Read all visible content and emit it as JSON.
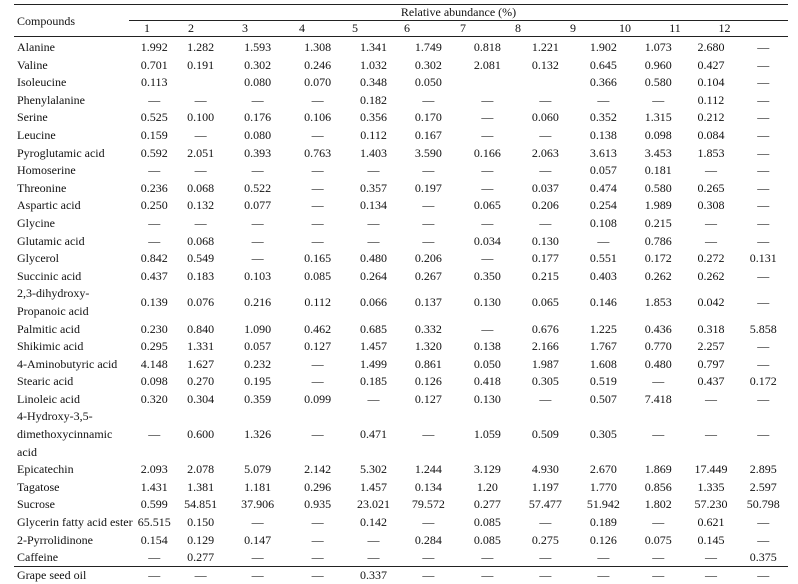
{
  "header": {
    "compounds_label": "Compounds",
    "group_label": "Relative abundance (%)",
    "columns": [
      "1",
      "2",
      "3",
      "4",
      "5",
      "6",
      "7",
      "8",
      "9",
      "10",
      "11",
      "12"
    ]
  },
  "rows": [
    {
      "name": "Alanine",
      "values": [
        "1.992",
        "1.282",
        "1.593",
        "1.308",
        "1.341",
        "1.749",
        "0.818",
        "1.221",
        "1.902",
        "1.073",
        "2.680",
        "—"
      ]
    },
    {
      "name": "Valine",
      "values": [
        "0.701",
        "0.191",
        "0.302",
        "0.246",
        "1.032",
        "0.302",
        "2.081",
        "0.132",
        "0.645",
        "0.960",
        "0.427",
        "—"
      ]
    },
    {
      "name": "Isoleucine",
      "values": [
        "0.113",
        "",
        "0.080",
        "0.070",
        "0.348",
        "0.050",
        "",
        "",
        "0.366",
        "0.580",
        "0.104",
        "—"
      ]
    },
    {
      "name": "Phenylalanine",
      "values": [
        "—",
        "—",
        "—",
        "—",
        "0.182",
        "—",
        "—",
        "—",
        "—",
        "—",
        "0.112",
        "—"
      ]
    },
    {
      "name": "Serine",
      "values": [
        "0.525",
        "0.100",
        "0.176",
        "0.106",
        "0.356",
        "0.170",
        "—",
        "0.060",
        "0.352",
        "1.315",
        "0.212",
        "—"
      ]
    },
    {
      "name": "Leucine",
      "values": [
        "0.159",
        "—",
        "0.080",
        "—",
        "0.112",
        "0.167",
        "—",
        "—",
        "0.138",
        "0.098",
        "0.084",
        "—"
      ]
    },
    {
      "name": "Pyroglutamic acid",
      "values": [
        "0.592",
        "2.051",
        "0.393",
        "0.763",
        "1.403",
        "3.590",
        "0.166",
        "2.063",
        "3.613",
        "3.453",
        "1.853",
        "—"
      ]
    },
    {
      "name": "Homoserine",
      "values": [
        "—",
        "—",
        "—",
        "—",
        "—",
        "—",
        "—",
        "—",
        "0.057",
        "0.181",
        "—",
        "—"
      ]
    },
    {
      "name": "Threonine",
      "values": [
        "0.236",
        "0.068",
        "0.522",
        "—",
        "0.357",
        "0.197",
        "—",
        "0.037",
        "0.474",
        "0.580",
        "0.265",
        "—"
      ]
    },
    {
      "name": "Aspartic acid",
      "values": [
        "0.250",
        "0.132",
        "0.077",
        "—",
        "0.134",
        "—",
        "0.065",
        "0.206",
        "0.254",
        "1.989",
        "0.308",
        "—"
      ]
    },
    {
      "name": "Glycine",
      "values": [
        "—",
        "—",
        "—",
        "—",
        "—",
        "—",
        "—",
        "—",
        "0.108",
        "0.215",
        "—",
        "—"
      ]
    },
    {
      "name": "Glutamic acid",
      "values": [
        "—",
        "0.068",
        "—",
        "—",
        "—",
        "—",
        "0.034",
        "0.130",
        "—",
        "0.786",
        "—",
        "—"
      ]
    },
    {
      "name": "Glycerol",
      "values": [
        "0.842",
        "0.549",
        "—",
        "0.165",
        "0.480",
        "0.206",
        "—",
        "0.177",
        "0.551",
        "0.172",
        "0.272",
        "0.131"
      ]
    },
    {
      "name": "Succinic acid",
      "values": [
        "0.437",
        "0.183",
        "0.103",
        "0.085",
        "0.264",
        "0.267",
        "0.350",
        "0.215",
        "0.403",
        "0.262",
        "0.262",
        "—"
      ]
    },
    {
      "name": "2,3-dihydroxy-Propanoic acid",
      "values": [
        "0.139",
        "0.076",
        "0.216",
        "0.112",
        "0.066",
        "0.137",
        "0.130",
        "0.065",
        "0.146",
        "1.853",
        "0.042",
        "—"
      ]
    },
    {
      "name": "Palmitic acid",
      "values": [
        "0.230",
        "0.840",
        "1.090",
        "0.462",
        "0.685",
        "0.332",
        "—",
        "0.676",
        "1.225",
        "0.436",
        "0.318",
        "5.858"
      ]
    },
    {
      "name": "Shikimic acid",
      "values": [
        "0.295",
        "1.331",
        "0.057",
        "0.127",
        "1.457",
        "1.320",
        "0.138",
        "2.166",
        "1.767",
        "0.770",
        "2.257",
        "—"
      ]
    },
    {
      "name": "4-Aminobutyric acid",
      "values": [
        "4.148",
        "1.627",
        "0.232",
        "—",
        "1.499",
        "0.861",
        "0.050",
        "1.987",
        "1.608",
        "0.480",
        "0.797",
        "—"
      ]
    },
    {
      "name": "Stearic acid",
      "values": [
        "0.098",
        "0.270",
        "0.195",
        "—",
        "0.185",
        "0.126",
        "0.418",
        "0.305",
        "0.519",
        "—",
        "0.437",
        "0.172"
      ]
    },
    {
      "name": "Linoleic acid",
      "values": [
        "0.320",
        "0.304",
        "0.359",
        "0.099",
        "—",
        "0.127",
        "0.130",
        "—",
        "0.507",
        "7.418",
        "—",
        "—"
      ]
    },
    {
      "name": "4-Hydroxy-3,5-dimethoxycinnamic acid",
      "values": [
        "—",
        "0.600",
        "1.326",
        "—",
        "0.471",
        "—",
        "1.059",
        "0.509",
        "0.305",
        "—",
        "—",
        "—"
      ]
    },
    {
      "name": "Epicatechin",
      "values": [
        "2.093",
        "2.078",
        "5.079",
        "2.142",
        "5.302",
        "1.244",
        "3.129",
        "4.930",
        "2.670",
        "1.869",
        "17.449",
        "2.895"
      ]
    },
    {
      "name": "Tagatose",
      "values": [
        "1.431",
        "1.381",
        "1.181",
        "0.296",
        "1.457",
        "0.134",
        "1.20",
        "1.197",
        "1.770",
        "0.856",
        "1.335",
        "2.597"
      ]
    },
    {
      "name": "Sucrose",
      "values": [
        "0.599",
        "54.851",
        "37.906",
        "0.935",
        "23.021",
        "79.572",
        "0.277",
        "57.477",
        "51.942",
        "1.802",
        "57.230",
        "50.798"
      ]
    },
    {
      "name": "Glycerin fatty acid ester",
      "values": [
        "65.515",
        "0.150",
        "—",
        "—",
        "0.142",
        "—",
        "0.085",
        "—",
        "0.189",
        "—",
        "0.621",
        "—"
      ]
    },
    {
      "name": "2-Pyrrolidinone",
      "values": [
        "0.154",
        "0.129",
        "0.147",
        "—",
        "—",
        "0.284",
        "0.085",
        "0.275",
        "0.126",
        "0.075",
        "0.145",
        "—"
      ]
    },
    {
      "name": "Caffeine",
      "values": [
        "—",
        "0.277",
        "—",
        "—",
        "—",
        "—",
        "—",
        "—",
        "—",
        "—",
        "—",
        "0.375"
      ]
    },
    {
      "name": "Grape seed oil",
      "values": [
        "—",
        "—",
        "—",
        "—",
        "0.337",
        "—",
        "—",
        "—",
        "—",
        "—",
        "—",
        "—"
      ]
    }
  ]
}
